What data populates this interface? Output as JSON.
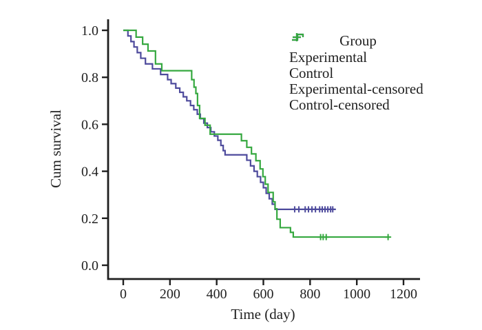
{
  "figure": {
    "background": "#ffffff",
    "text_color": "#1f1f1f"
  },
  "axes": {
    "x": {
      "label": "Time (day)",
      "ticks": [
        0,
        200,
        400,
        600,
        800,
        1000,
        1200
      ]
    },
    "y": {
      "label": "Cum survival",
      "ticks": [
        "0.0",
        "0.2",
        "0.4",
        "0.6",
        "0.8",
        "1.0"
      ]
    }
  },
  "legend": {
    "title": "Group",
    "entries": [
      {
        "label": "Experimental",
        "color": "#4d4a9c",
        "symbol": "step"
      },
      {
        "label": "Control",
        "color": "#35a83f",
        "symbol": "step"
      },
      {
        "label": "Experimental-censored",
        "color": "#4d4a9c",
        "symbol": "plus"
      },
      {
        "label": "Control-censored",
        "color": "#35a83f",
        "symbol": "plus"
      }
    ]
  },
  "chart_data": {
    "type": "line",
    "subtype": "kaplan-meier-step-survival",
    "title": "",
    "xlabel": "Time (day)",
    "ylabel": "Cum survival",
    "xlim": [
      0,
      1270
    ],
    "ylim": [
      0.0,
      1.05
    ],
    "grid": false,
    "legend_position": "upper right",
    "series": [
      {
        "name": "Experimental",
        "color": "#4d4a9c",
        "start": [
          0,
          1.0
        ],
        "end_time": 910,
        "points": [
          [
            20,
            0.976
          ],
          [
            33,
            0.952
          ],
          [
            46,
            0.929
          ],
          [
            60,
            0.905
          ],
          [
            75,
            0.881
          ],
          [
            95,
            0.857
          ],
          [
            125,
            0.836
          ],
          [
            160,
            0.812
          ],
          [
            190,
            0.79
          ],
          [
            205,
            0.773
          ],
          [
            225,
            0.754
          ],
          [
            242,
            0.736
          ],
          [
            257,
            0.717
          ],
          [
            272,
            0.7
          ],
          [
            288,
            0.68
          ],
          [
            302,
            0.662
          ],
          [
            317,
            0.643
          ],
          [
            330,
            0.624
          ],
          [
            345,
            0.605
          ],
          [
            360,
            0.586
          ],
          [
            375,
            0.568
          ],
          [
            390,
            0.55
          ],
          [
            405,
            0.532
          ],
          [
            418,
            0.51
          ],
          [
            428,
            0.488
          ],
          [
            436,
            0.47
          ],
          [
            529,
            0.447
          ],
          [
            545,
            0.423
          ],
          [
            560,
            0.4
          ],
          [
            574,
            0.377
          ],
          [
            588,
            0.353
          ],
          [
            600,
            0.33
          ],
          [
            612,
            0.306
          ],
          [
            625,
            0.283
          ],
          [
            638,
            0.26
          ],
          [
            650,
            0.238
          ]
        ],
        "censored_times": [
          734,
          752,
          779,
          793,
          808,
          823,
          841,
          852,
          864,
          876,
          888,
          897
        ]
      },
      {
        "name": "Control",
        "color": "#35a83f",
        "start": [
          0,
          1.0
        ],
        "end_time": 1140,
        "points": [
          [
            55,
            0.971
          ],
          [
            83,
            0.941
          ],
          [
            106,
            0.912
          ],
          [
            138,
            0.857
          ],
          [
            165,
            0.828
          ],
          [
            293,
            0.79
          ],
          [
            303,
            0.758
          ],
          [
            311,
            0.731
          ],
          [
            318,
            0.68
          ],
          [
            327,
            0.625
          ],
          [
            350,
            0.596
          ],
          [
            372,
            0.558
          ],
          [
            506,
            0.53
          ],
          [
            529,
            0.502
          ],
          [
            549,
            0.474
          ],
          [
            568,
            0.445
          ],
          [
            586,
            0.41
          ],
          [
            598,
            0.377
          ],
          [
            608,
            0.345
          ],
          [
            620,
            0.31
          ],
          [
            642,
            0.27
          ],
          [
            650,
            0.24
          ],
          [
            658,
            0.196
          ],
          [
            672,
            0.16
          ],
          [
            716,
            0.14
          ],
          [
            728,
            0.12
          ]
        ],
        "censored_times": [
          845,
          856,
          869,
          1134
        ]
      }
    ]
  }
}
